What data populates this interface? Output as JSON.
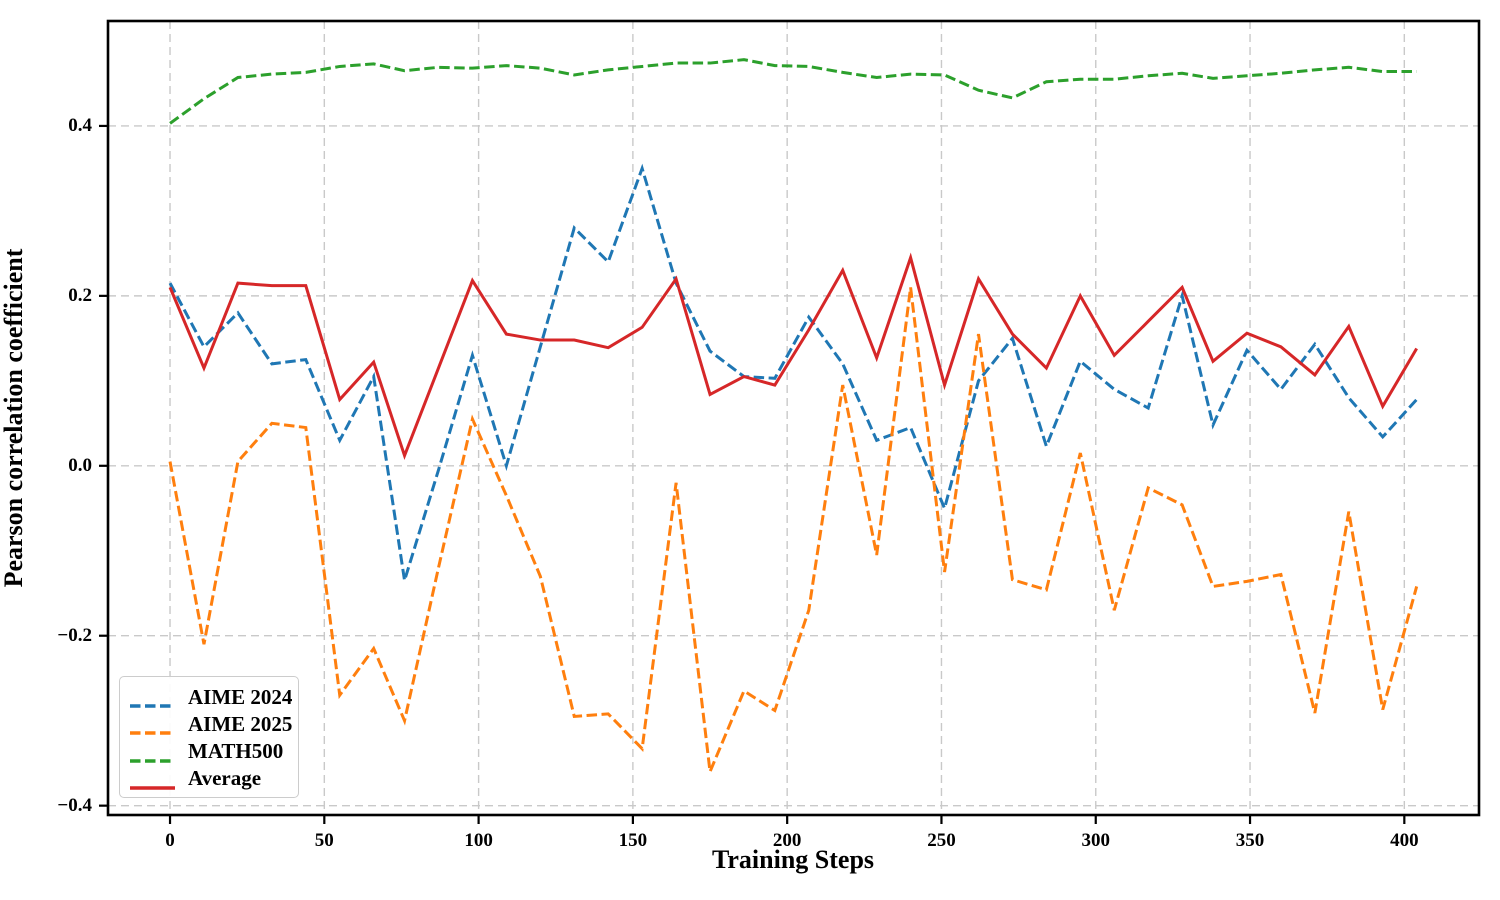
{
  "chart_data": {
    "type": "line",
    "title": "",
    "xlabel": "Training Steps",
    "ylabel": "Pearson correlation coefficient",
    "grid": true,
    "grid_color": "#c9c9c9",
    "spine_color": "#000000",
    "legend_position": "lower left",
    "xlim": [
      -20.1,
      424.2
    ],
    "ylim": [
      -0.411,
      0.5235
    ],
    "x_ticks": [
      {
        "v": 0,
        "label": "0"
      },
      {
        "v": 50,
        "label": "50"
      },
      {
        "v": 100,
        "label": "100"
      },
      {
        "v": 150,
        "label": "150"
      },
      {
        "v": 200,
        "label": "200"
      },
      {
        "v": 250,
        "label": "250"
      },
      {
        "v": 300,
        "label": "300"
      },
      {
        "v": 350,
        "label": "350"
      },
      {
        "v": 400,
        "label": "400"
      }
    ],
    "y_ticks": [
      {
        "v": 0.4,
        "label": "0.4"
      },
      {
        "v": 0.2,
        "label": "0.2"
      },
      {
        "v": 0.0,
        "label": "0.0"
      },
      {
        "v": -0.2,
        "label": "−0.2"
      },
      {
        "v": -0.4,
        "label": "−0.4"
      }
    ],
    "x": [
      0,
      11,
      22,
      33,
      44,
      55,
      66,
      76,
      87,
      98,
      109,
      120,
      131,
      142,
      153,
      164,
      175,
      186,
      196,
      207,
      218,
      229,
      240,
      251,
      262,
      273,
      284,
      295,
      306,
      317,
      328,
      338,
      349,
      360,
      371,
      382,
      393,
      404
    ],
    "series": [
      {
        "name": "AIME 2024",
        "color": "#1f77b4",
        "style": "dashed",
        "values": [
          0.215,
          0.14,
          0.18,
          0.12,
          0.125,
          0.03,
          0.105,
          -0.135,
          -0.005,
          0.13,
          0.0,
          0.14,
          0.28,
          0.24,
          0.35,
          0.215,
          0.135,
          0.105,
          0.103,
          0.175,
          0.12,
          0.03,
          0.045,
          -0.05,
          0.1,
          0.15,
          0.023,
          0.123,
          0.09,
          0.068,
          0.2,
          0.048,
          0.136,
          0.09,
          0.143,
          0.08,
          0.034,
          0.078
        ]
      },
      {
        "name": "AIME 2025",
        "color": "#ff7f0e",
        "style": "dashed",
        "values": [
          0.005,
          -0.21,
          0.005,
          0.05,
          0.045,
          -0.27,
          -0.215,
          -0.3,
          -0.12,
          0.055,
          -0.035,
          -0.13,
          -0.295,
          -0.292,
          -0.333,
          -0.02,
          -0.36,
          -0.265,
          -0.288,
          -0.17,
          0.095,
          -0.105,
          0.21,
          -0.125,
          0.155,
          -0.134,
          -0.146,
          0.015,
          -0.17,
          -0.026,
          -0.046,
          -0.142,
          -0.136,
          -0.128,
          -0.291,
          -0.054,
          -0.287,
          -0.142
        ]
      },
      {
        "name": "MATH500",
        "color": "#2ca02c",
        "style": "dashed",
        "values": [
          0.403,
          0.432,
          0.457,
          0.461,
          0.463,
          0.47,
          0.473,
          0.465,
          0.469,
          0.468,
          0.471,
          0.468,
          0.46,
          0.466,
          0.47,
          0.474,
          0.474,
          0.478,
          0.471,
          0.47,
          0.463,
          0.457,
          0.461,
          0.46,
          0.442,
          0.433,
          0.452,
          0.455,
          0.455,
          0.459,
          0.462,
          0.456,
          0.459,
          0.462,
          0.466,
          0.469,
          0.464,
          0.464
        ]
      },
      {
        "name": "Average",
        "color": "#d62728",
        "style": "solid",
        "values": [
          0.21,
          0.115,
          0.215,
          0.212,
          0.212,
          0.078,
          0.122,
          0.012,
          0.115,
          0.218,
          0.155,
          0.148,
          0.148,
          0.139,
          0.163,
          0.22,
          0.084,
          0.105,
          0.095,
          0.16,
          0.23,
          0.127,
          0.245,
          0.095,
          0.22,
          0.155,
          0.115,
          0.2,
          0.13,
          0.17,
          0.21,
          0.123,
          0.156,
          0.14,
          0.107,
          0.164,
          0.07,
          0.138
        ]
      }
    ]
  }
}
